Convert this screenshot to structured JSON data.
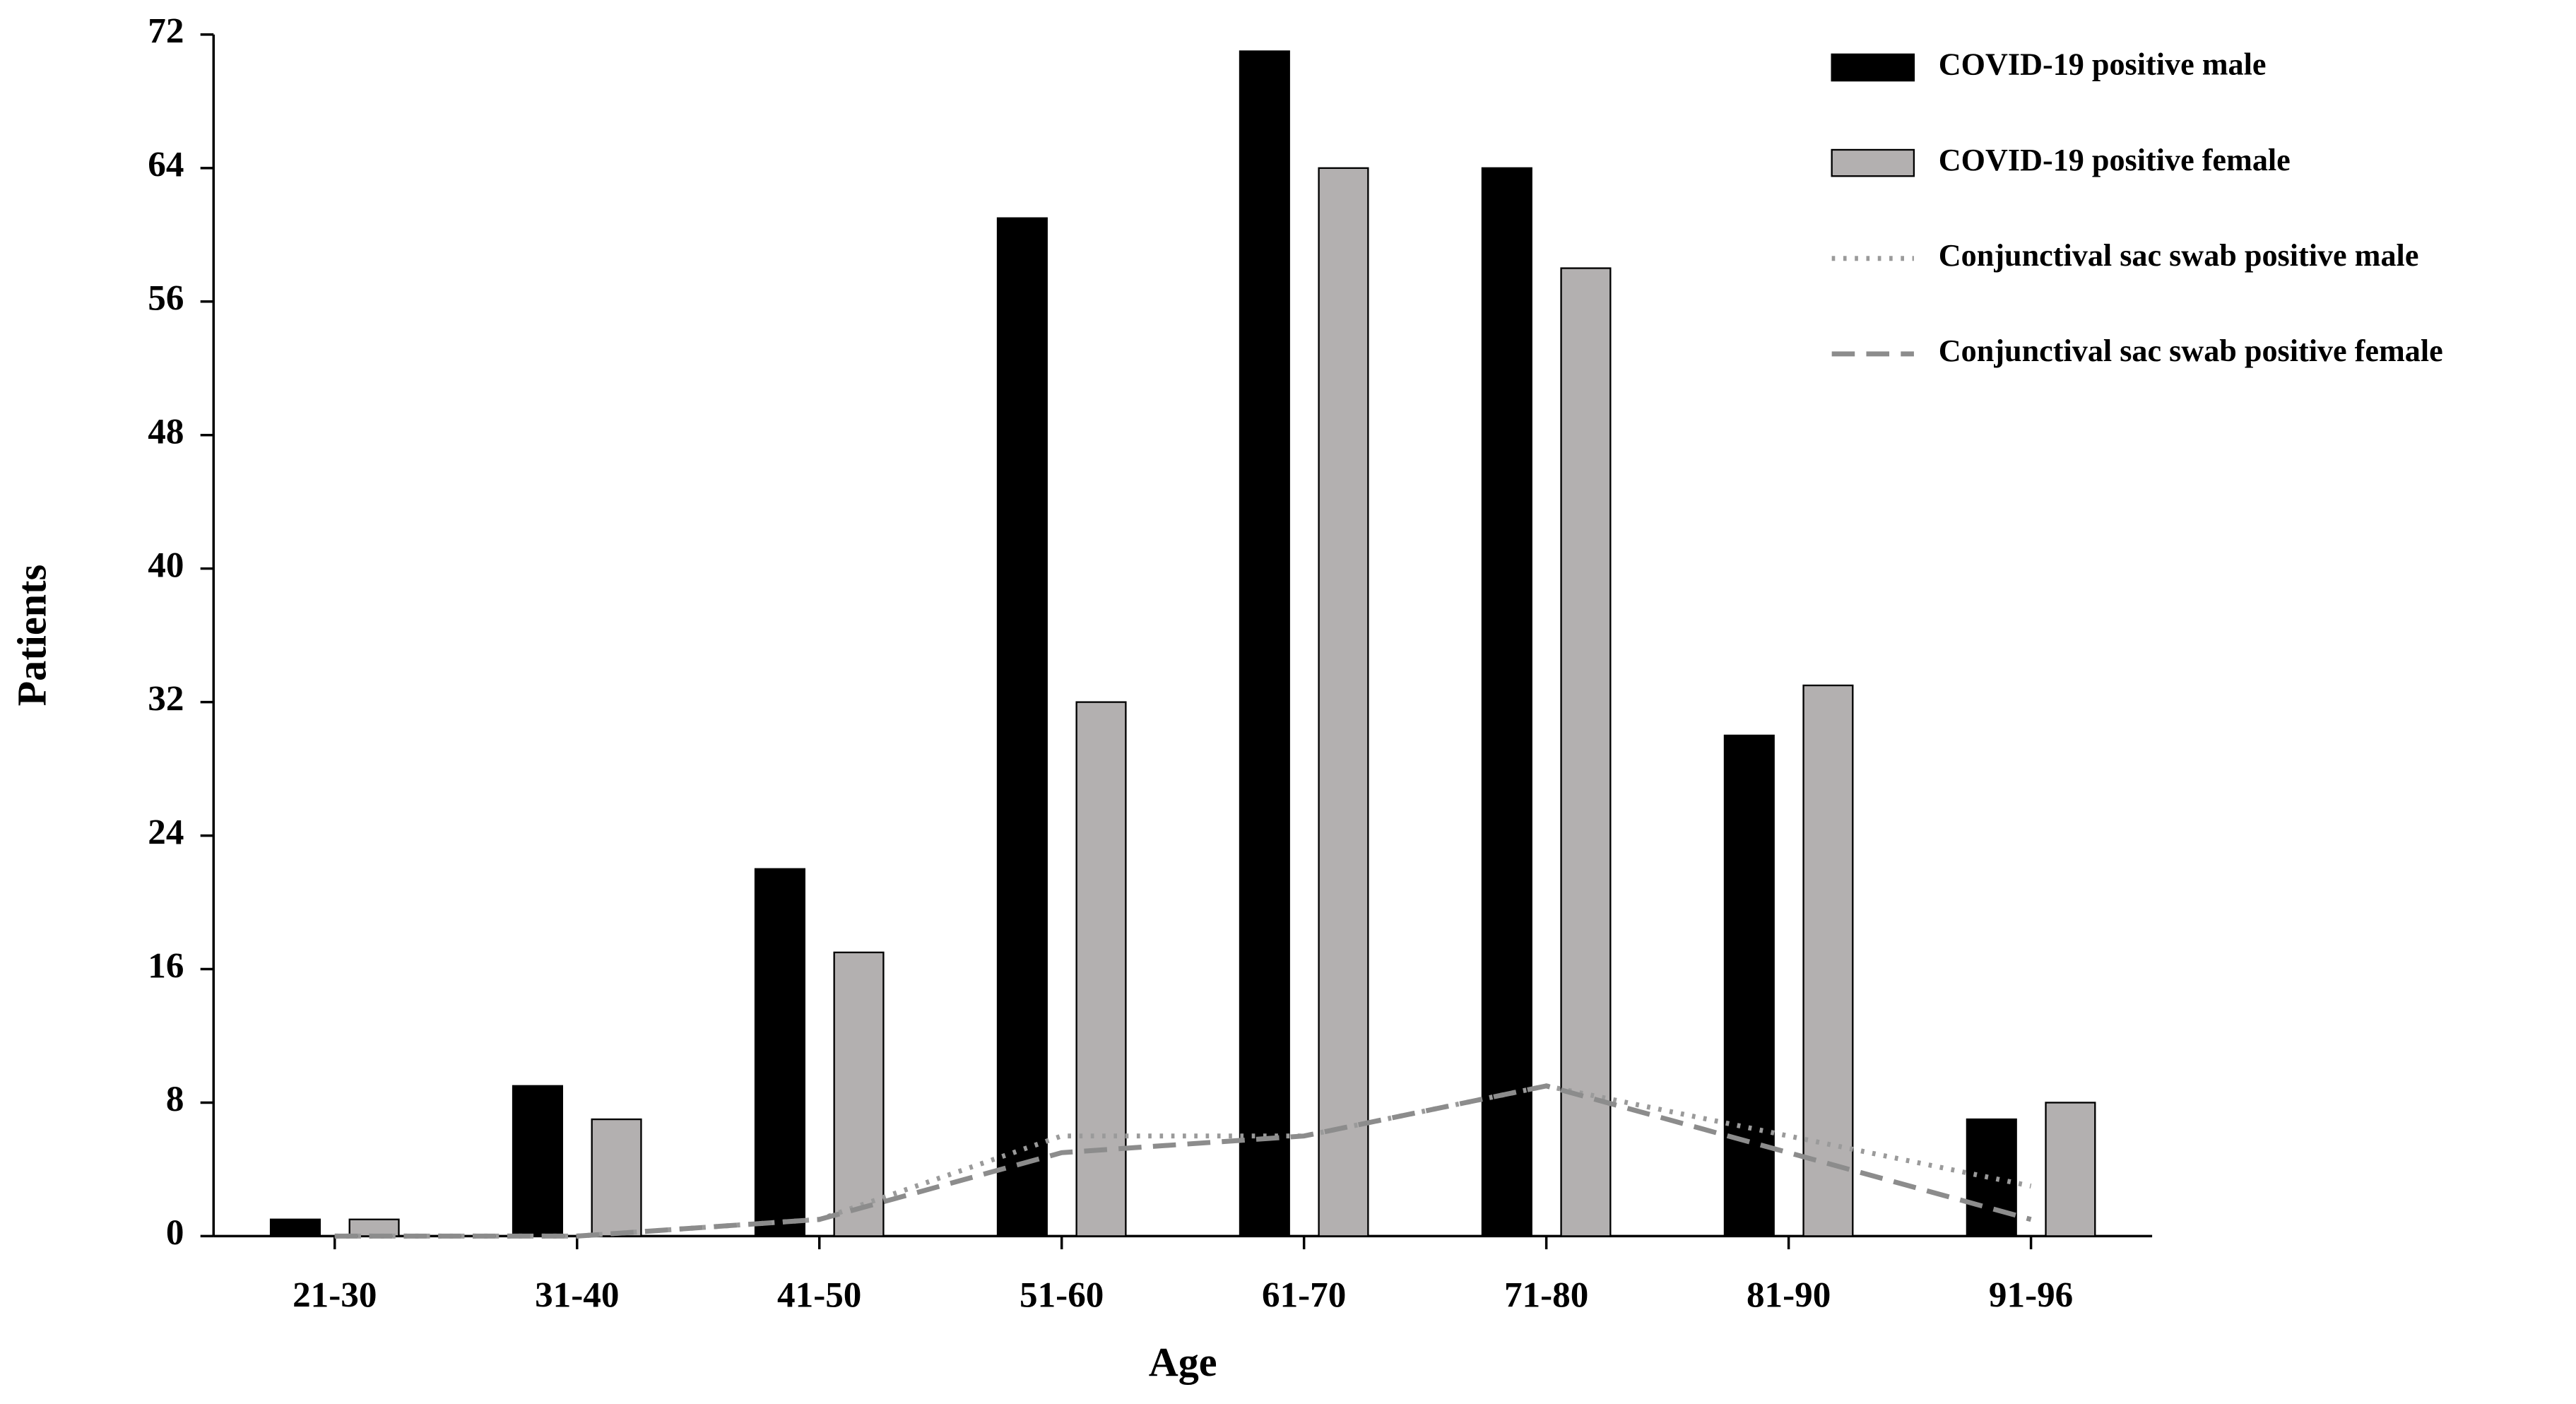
{
  "chart_data": {
    "type": "bar",
    "x_label": "Age",
    "y_label": "Patients",
    "categories": [
      "21-30",
      "31-40",
      "41-50",
      "51-60",
      "61-70",
      "71-80",
      "81-90",
      "91-96"
    ],
    "series": [
      {
        "name": "COVID-19 positive male",
        "type": "bar",
        "color": "#000000",
        "values": [
          1,
          9,
          22,
          61,
          71,
          64,
          30,
          7
        ]
      },
      {
        "name": "COVID-19 positive female",
        "type": "bar",
        "color": "#b3b0b0",
        "values": [
          1,
          7,
          17,
          32,
          64,
          58,
          33,
          8
        ]
      },
      {
        "name": "Conjunctival sac swab positive male",
        "type": "line",
        "dash": "dotted",
        "color": "#9a9a9a",
        "values": [
          0,
          0,
          1,
          6,
          6,
          9,
          6,
          3
        ]
      },
      {
        "name": "Conjunctival sac swab positive female",
        "type": "line",
        "dash": "dashed",
        "color": "#8c8c8c",
        "values": [
          0,
          0,
          1,
          5,
          6,
          9,
          5,
          1
        ]
      }
    ],
    "ylim": [
      0,
      72
    ],
    "yticks": [
      0,
      8,
      16,
      24,
      32,
      40,
      48,
      56,
      64,
      72
    ],
    "legend": "top-right",
    "grid": false
  }
}
